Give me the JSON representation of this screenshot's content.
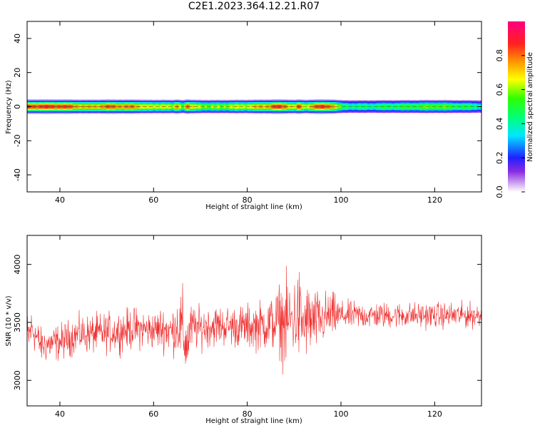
{
  "title": "C2E1.2023.364.12.21.R07",
  "colors": {
    "snr_line": "#f03030"
  },
  "chart_data": [
    {
      "type": "heatmap",
      "xlabel": "Height of straight line (km)",
      "ylabel": "Frequency (Hz)",
      "xlim": [
        33,
        130
      ],
      "ylim": [
        -50,
        50
      ],
      "xticks": [
        40,
        60,
        80,
        100,
        120
      ],
      "yticks": [
        -40,
        -20,
        0,
        20,
        40
      ],
      "colorbar": {
        "label": "Normalized spectral amplitude",
        "range": [
          0,
          1
        ],
        "ticks": [
          "0.0",
          "0.2",
          "0.4",
          "0.6",
          "0.8"
        ],
        "colormap": "rainbow (white-violet-blue-cyan-green-yellow-orange-red-magenta)"
      },
      "band": {
        "center_hz": 0,
        "strong_half_width_hz": 1,
        "weak_half_width_hz": 4
      },
      "intensity_profile": {
        "x_km": [
          33,
          40,
          46,
          50,
          56,
          60,
          62,
          64,
          65,
          66,
          67,
          68,
          72,
          76,
          80,
          84,
          86,
          88,
          90,
          91,
          92,
          94,
          96,
          98,
          100,
          104,
          110,
          116,
          120,
          126,
          130
        ],
        "peak": [
          0.9,
          0.9,
          0.75,
          0.85,
          0.8,
          0.65,
          0.75,
          0.6,
          0.85,
          0.55,
          0.9,
          0.7,
          0.6,
          0.65,
          0.7,
          0.8,
          0.9,
          0.85,
          0.7,
          0.9,
          0.65,
          0.85,
          0.9,
          0.85,
          0.5,
          0.45,
          0.5,
          0.55,
          0.6,
          0.5,
          0.45
        ]
      }
    },
    {
      "type": "line",
      "xlabel": "Height of straight line (km)",
      "ylabel": "SNR (10 * v/v)",
      "xlim": [
        33,
        130
      ],
      "ylim": [
        2780,
        4250
      ],
      "xticks": [
        40,
        60,
        80,
        100,
        120
      ],
      "yticks": [
        3000,
        3500,
        4000
      ],
      "series": [
        {
          "envelope_x_km": [
            33,
            34,
            36,
            40,
            44,
            48,
            52,
            56,
            60,
            62,
            64,
            65,
            66,
            66.5,
            67,
            68,
            70,
            72,
            76,
            80,
            84,
            86,
            87,
            88,
            89,
            90,
            91,
            92,
            93,
            94,
            96,
            98,
            100,
            104,
            110,
            116,
            120,
            124,
            128,
            130
          ],
          "mean": [
            3350,
            3450,
            3300,
            3330,
            3400,
            3400,
            3420,
            3450,
            3430,
            3450,
            3420,
            3480,
            3440,
            3380,
            3300,
            3450,
            3450,
            3470,
            3470,
            3460,
            3480,
            3500,
            3530,
            3480,
            3520,
            3540,
            3560,
            3470,
            3520,
            3500,
            3530,
            3560,
            3560,
            3560,
            3560,
            3560,
            3560,
            3560,
            3560,
            3560
          ],
          "spread": [
            350,
            250,
            220,
            230,
            230,
            250,
            250,
            260,
            230,
            280,
            300,
            350,
            500,
            600,
            400,
            300,
            260,
            260,
            250,
            280,
            320,
            380,
            450,
            600,
            520,
            480,
            650,
            380,
            480,
            400,
            340,
            300,
            180,
            170,
            160,
            160,
            160,
            160,
            160,
            160
          ]
        }
      ]
    }
  ]
}
